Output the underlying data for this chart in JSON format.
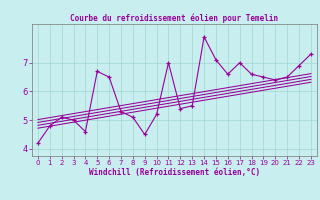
{
  "title": "Courbe du refroidissement éolien pour Temelin",
  "xlabel": "Windchill (Refroidissement éolien,°C)",
  "bg_color": "#c8eef0",
  "line_color": "#990099",
  "xlim": [
    -0.5,
    23.5
  ],
  "ylim": [
    3.75,
    8.35
  ],
  "xticks": [
    0,
    1,
    2,
    3,
    4,
    5,
    6,
    7,
    8,
    9,
    10,
    11,
    12,
    13,
    14,
    15,
    16,
    17,
    18,
    19,
    20,
    21,
    22,
    23
  ],
  "yticks": [
    4,
    5,
    6,
    7
  ],
  "grid_color": "#a0d8d0",
  "scatter_x": [
    0,
    1,
    2,
    3,
    4,
    5,
    6,
    7,
    8,
    9,
    10,
    11,
    12,
    13,
    14,
    15,
    16,
    17,
    18,
    19,
    20,
    21,
    22,
    23
  ],
  "scatter_y": [
    4.2,
    4.8,
    5.1,
    5.0,
    4.6,
    6.7,
    6.5,
    5.3,
    5.1,
    4.5,
    5.2,
    7.0,
    5.4,
    5.5,
    7.9,
    7.1,
    6.6,
    7.0,
    6.6,
    6.5,
    6.4,
    6.5,
    6.9,
    7.3
  ],
  "trend_lines": [
    {
      "x0": 0,
      "y0": 4.72,
      "x1": 23,
      "y1": 6.32
    },
    {
      "x0": 0,
      "y0": 4.82,
      "x1": 23,
      "y1": 6.42
    },
    {
      "x0": 0,
      "y0": 4.92,
      "x1": 23,
      "y1": 6.52
    },
    {
      "x0": 0,
      "y0": 5.02,
      "x1": 23,
      "y1": 6.62
    }
  ]
}
